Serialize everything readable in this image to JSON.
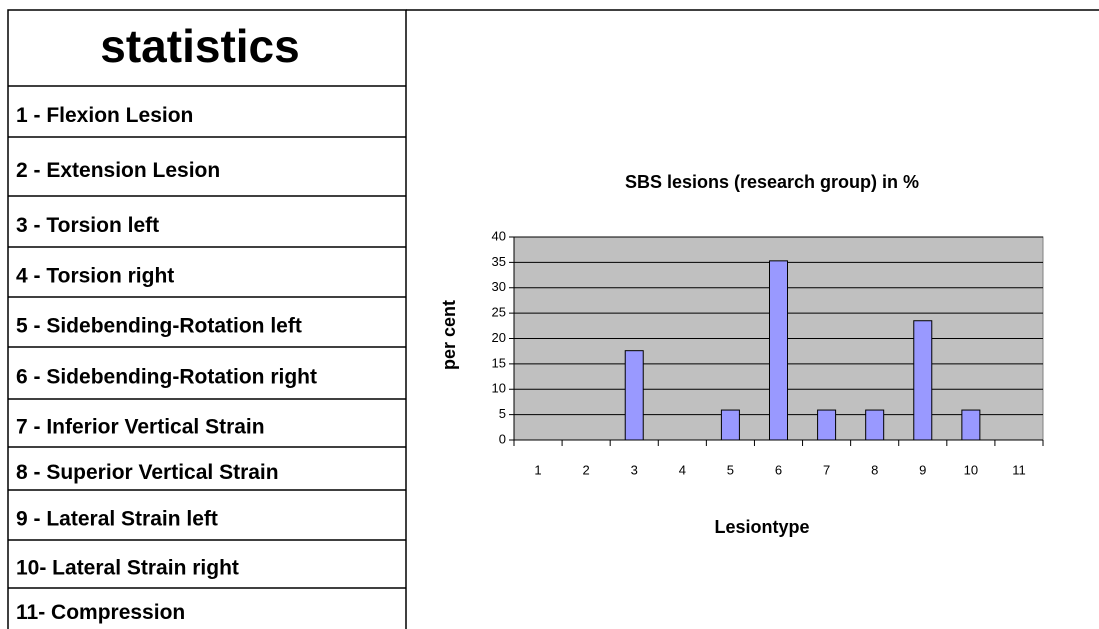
{
  "table": {
    "title": "statistics",
    "rows": [
      "1 - Flexion Lesion",
      "2 - Extension Lesion",
      "3 - Torsion left",
      "4 - Torsion right",
      "5 - Sidebending-Rotation left",
      "6 -  Sidebending-Rotation right",
      "7 - Inferior Vertical Strain",
      "8 - Superior Vertical Strain",
      "9 - Lateral Strain left",
      "10- Lateral Strain right",
      "11- Compression"
    ]
  },
  "chart_data": {
    "type": "bar",
    "title": "SBS lesions (research group) in %",
    "x_label": "Lesiontype",
    "y_label": "per cent",
    "categories": [
      "1",
      "2",
      "3",
      "4",
      "5",
      "6",
      "7",
      "8",
      "9",
      "10",
      "11"
    ],
    "values": [
      0,
      0,
      17.6,
      0,
      5.9,
      35.3,
      5.9,
      5.9,
      23.5,
      5.9,
      0
    ],
    "color": "#9999ff",
    "ylim": [
      0,
      40
    ],
    "yticks": [
      0,
      5,
      10,
      15,
      20,
      25,
      30,
      35,
      40
    ],
    "grid": true
  }
}
